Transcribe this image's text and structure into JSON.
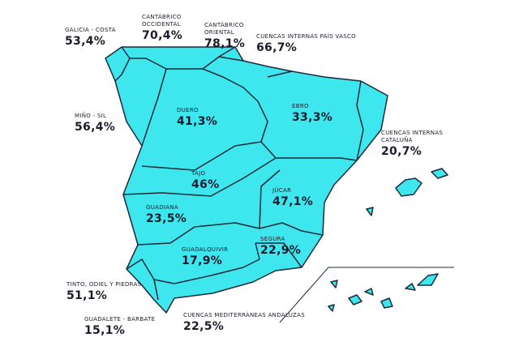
{
  "basins": [
    {
      "name": "GALICIA - COSTA",
      "value": "53,4%"
    },
    {
      "name": "CANTÁBRICO OCCIDENTAL",
      "value": "70,4%"
    },
    {
      "name": "CANTÁBRICO ORIENTAL",
      "value": "78,1%"
    },
    {
      "name": "CUENCAS INTERNAS PAÍS VASCO",
      "value": "66,7%"
    },
    {
      "name": "MIÑO - SIL",
      "value": "56,4%"
    },
    {
      "name": "DUERO",
      "value": "41,3%"
    },
    {
      "name": "EBRO",
      "value": "33,3%"
    },
    {
      "name": "CUENCAS INTERNAS CATALUÑA",
      "value": "20,7%"
    },
    {
      "name": "TAJO",
      "value": "46%"
    },
    {
      "name": "JÚCAR",
      "value": "47,1%"
    },
    {
      "name": "GUADIANA",
      "value": "23,5%"
    },
    {
      "name": "SEGURA",
      "value": "22,9%"
    },
    {
      "name": "GUADALQUIVIR",
      "value": "17,9%"
    },
    {
      "name": "TINTO, ODIEL Y PIEDRAS",
      "value": "51,1%"
    },
    {
      "name": "GUADALETE - BARBATE",
      "value": "15,1%"
    },
    {
      "name": "CUENCAS MEDITERRÁNEAS ANDALUZAS",
      "value": "22,5%"
    }
  ]
}
